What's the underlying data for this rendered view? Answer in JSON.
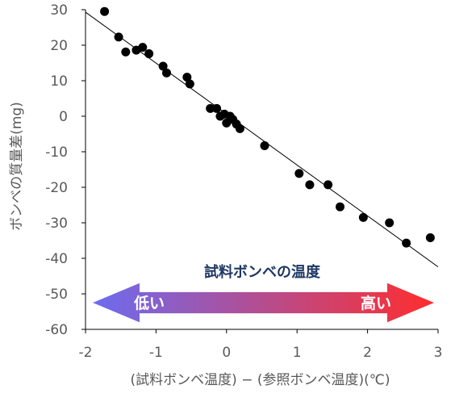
{
  "chart_data": {
    "type": "scatter",
    "title": "",
    "xlabel": "(試料ボンベ温度) − (参照ボンベ温度)(℃)",
    "ylabel": "ボンベの質量差(mg)",
    "xlim": [
      -2,
      3
    ],
    "ylim": [
      -60,
      30
    ],
    "x_ticks": [
      -2,
      -1,
      0,
      1,
      2,
      3
    ],
    "y_ticks": [
      30,
      20,
      10,
      0,
      -10,
      -20,
      -30,
      -40,
      -50,
      -60
    ],
    "grid": false,
    "legend": "none",
    "colors": {
      "points": "#000000",
      "fit_line": "#000000",
      "arrow_left": "#6c6cf0",
      "arrow_right": "#ff2d2d"
    },
    "points": [
      {
        "x": -1.73,
        "y": 29.5
      },
      {
        "x": -1.53,
        "y": 22.3
      },
      {
        "x": -1.43,
        "y": 18.1
      },
      {
        "x": -1.28,
        "y": 18.6
      },
      {
        "x": -1.19,
        "y": 19.4
      },
      {
        "x": -1.1,
        "y": 17.6
      },
      {
        "x": -0.9,
        "y": 14.1
      },
      {
        "x": -0.85,
        "y": 12.2
      },
      {
        "x": -0.56,
        "y": 11.0
      },
      {
        "x": -0.52,
        "y": 9.1
      },
      {
        "x": -0.23,
        "y": 2.2
      },
      {
        "x": -0.14,
        "y": 2.2
      },
      {
        "x": -0.09,
        "y": 0.0
      },
      {
        "x": -0.03,
        "y": 0.6
      },
      {
        "x": 0.0,
        "y": -1.9
      },
      {
        "x": 0.05,
        "y": 0.0
      },
      {
        "x": 0.09,
        "y": -0.9
      },
      {
        "x": 0.14,
        "y": -2.2
      },
      {
        "x": 0.19,
        "y": -3.5
      },
      {
        "x": 0.54,
        "y": -8.3
      },
      {
        "x": 1.03,
        "y": -16.1
      },
      {
        "x": 1.18,
        "y": -19.3
      },
      {
        "x": 1.44,
        "y": -19.3
      },
      {
        "x": 1.61,
        "y": -25.5
      },
      {
        "x": 1.94,
        "y": -28.5
      },
      {
        "x": 2.31,
        "y": -30.0
      },
      {
        "x": 2.55,
        "y": -35.7
      },
      {
        "x": 2.89,
        "y": -34.2
      }
    ],
    "fit_line": {
      "x": [
        -2.0,
        3.0
      ],
      "y": [
        29.3,
        -42.4
      ]
    },
    "annotation": {
      "caption": "試料ボンベの温度",
      "low_label": "低い",
      "high_label": "高い",
      "arrow_y_range": [
        -47,
        -58
      ]
    }
  }
}
